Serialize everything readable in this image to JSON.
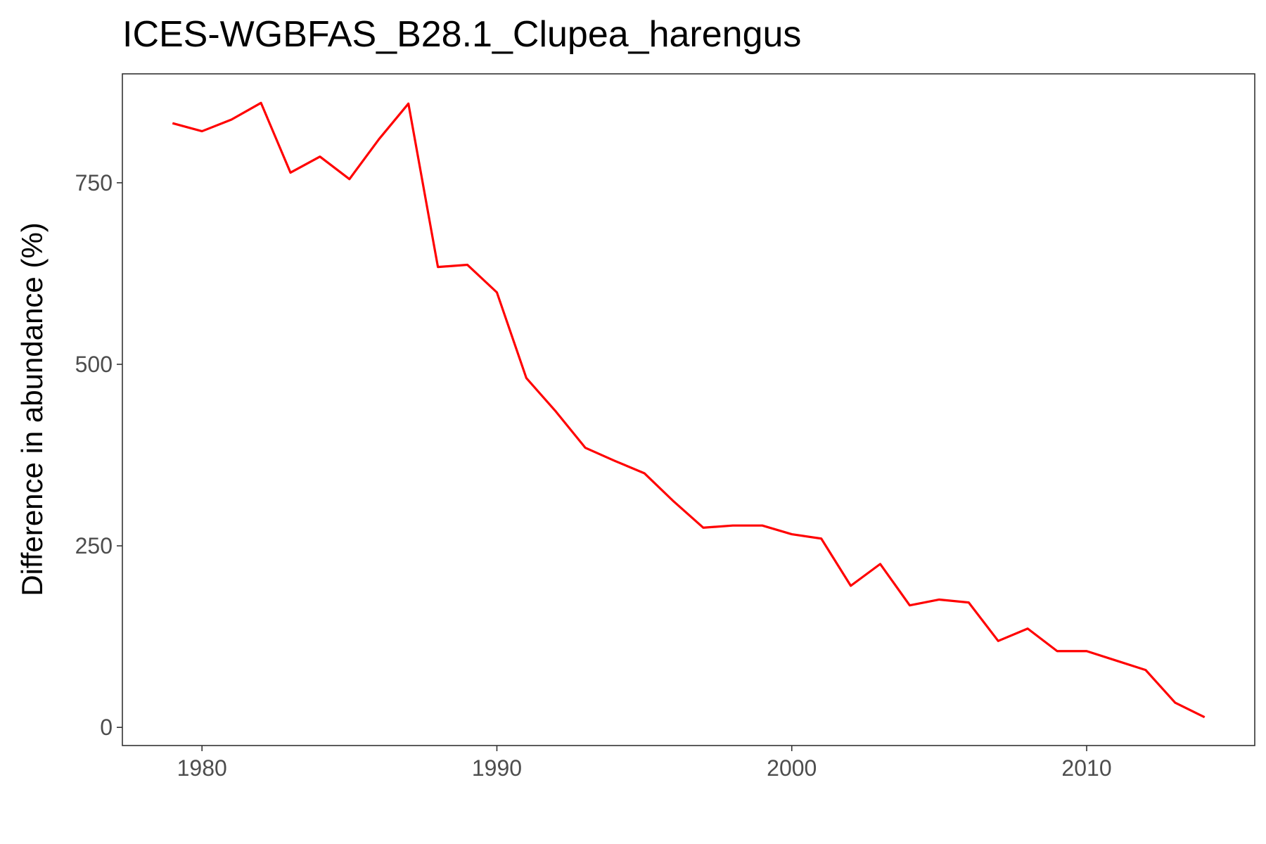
{
  "chart_data": {
    "type": "line",
    "title": "ICES-WGBFAS_B28.1_Clupea_harengus",
    "xlabel": "",
    "ylabel": "Difference in abundance (%)",
    "xlim": [
      1977.3,
      2015.7
    ],
    "ylim": [
      -25,
      900
    ],
    "x_ticks": [
      1980,
      1990,
      2000,
      2010
    ],
    "y_ticks": [
      0,
      250,
      500,
      750
    ],
    "grid": false,
    "legend": "none",
    "line_color": "#ff0000",
    "series": [
      {
        "x": [
          1979,
          1980,
          1981,
          1982,
          1983,
          1984,
          1985,
          1986,
          1987,
          1988,
          1989,
          1990,
          1991,
          1992,
          1993,
          1994,
          1995,
          1996,
          1997,
          1998,
          1999,
          2000,
          2001,
          2002,
          2003,
          2004,
          2005,
          2006,
          2007,
          2008,
          2009,
          2010,
          2011,
          2012,
          2013,
          2014
        ],
        "values": [
          832,
          821,
          837,
          860,
          764,
          786,
          755,
          810,
          859,
          634,
          637,
          599,
          481,
          435,
          385,
          367,
          350,
          311,
          275,
          278,
          278,
          266,
          260,
          195,
          225,
          168,
          176,
          172,
          119,
          136,
          105,
          105,
          92,
          79,
          34,
          14
        ]
      }
    ]
  }
}
